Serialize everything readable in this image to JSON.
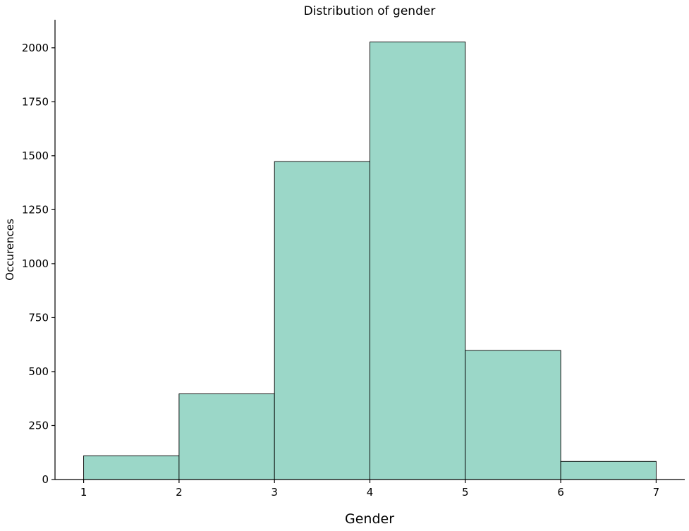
{
  "chart_data": {
    "type": "bar",
    "title": "Distribution of gender",
    "xlabel": "Gender",
    "ylabel": "Occurences",
    "bins": [
      {
        "start": 1,
        "end": 2,
        "value": 110
      },
      {
        "start": 2,
        "end": 3,
        "value": 397
      },
      {
        "start": 3,
        "end": 4,
        "value": 1473
      },
      {
        "start": 4,
        "end": 5,
        "value": 2027
      },
      {
        "start": 5,
        "end": 6,
        "value": 598
      },
      {
        "start": 6,
        "end": 7,
        "value": 84
      }
    ],
    "x_ticks": [
      1,
      2,
      3,
      4,
      5,
      6,
      7
    ],
    "y_ticks": [
      0,
      250,
      500,
      750,
      1000,
      1250,
      1500,
      1750,
      2000
    ],
    "xlim": [
      0.7,
      7.3
    ],
    "ylim": [
      0,
      2130
    ],
    "grid": false,
    "legend": "none",
    "colors": {
      "bar_fill": "#9bd7c8",
      "bar_edge": "#000000",
      "axis": "#000000",
      "background": "#ffffff"
    }
  }
}
